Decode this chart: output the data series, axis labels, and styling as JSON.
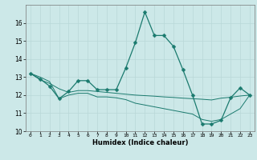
{
  "xlabel": "Humidex (Indice chaleur)",
  "x": [
    0,
    1,
    2,
    3,
    4,
    5,
    6,
    7,
    8,
    9,
    10,
    11,
    12,
    13,
    14,
    15,
    16,
    17,
    18,
    19,
    20,
    21,
    22,
    23
  ],
  "y_main": [
    13.2,
    12.9,
    12.5,
    11.8,
    12.2,
    12.8,
    12.8,
    12.3,
    12.3,
    12.3,
    13.5,
    14.9,
    16.6,
    15.3,
    15.3,
    14.7,
    13.4,
    12.0,
    10.4,
    10.4,
    10.6,
    11.85,
    12.4,
    12.0
  ],
  "y_line1": [
    13.2,
    12.85,
    12.65,
    12.35,
    12.15,
    12.25,
    12.25,
    12.2,
    12.15,
    12.1,
    12.05,
    12.0,
    11.97,
    11.94,
    11.9,
    11.87,
    11.83,
    11.8,
    11.77,
    11.73,
    11.83,
    11.88,
    11.95,
    12.0
  ],
  "y_line2": [
    13.2,
    13.0,
    12.75,
    11.8,
    12.0,
    12.1,
    12.1,
    11.9,
    11.9,
    11.85,
    11.75,
    11.55,
    11.45,
    11.35,
    11.25,
    11.15,
    11.05,
    10.95,
    10.65,
    10.55,
    10.65,
    10.95,
    11.25,
    12.0
  ],
  "line_color": "#1a7a6e",
  "bg_color": "#cce8e8",
  "grid_color": "#b8d8d8",
  "ylim": [
    10,
    17
  ],
  "yticks": [
    10,
    11,
    12,
    13,
    14,
    15,
    16
  ],
  "marker": "D",
  "markersize": 2.5
}
